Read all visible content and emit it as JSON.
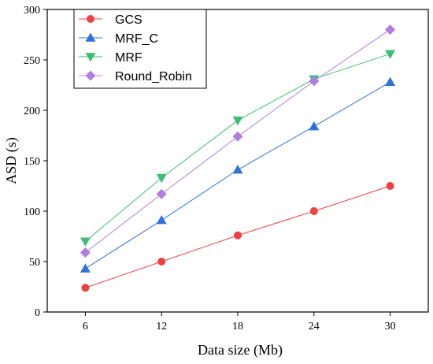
{
  "chart_data": {
    "type": "line",
    "title": "",
    "xlabel": "Data size (Mb)",
    "ylabel": "ASD (s)",
    "x": [
      6,
      12,
      18,
      24,
      30
    ],
    "xticks": [
      "6",
      "12",
      "18",
      "24",
      "30"
    ],
    "ylim": [
      0,
      300
    ],
    "yticks": [
      "0",
      "50",
      "100",
      "150",
      "200",
      "250",
      "300"
    ],
    "grid": false,
    "legend_position": "top-left",
    "series": [
      {
        "name": "GCS",
        "values": [
          24,
          50,
          76,
          100,
          125
        ],
        "color": "#f04040",
        "marker": "circle"
      },
      {
        "name": "MRF_C",
        "values": [
          43,
          91,
          141,
          184,
          228
        ],
        "color": "#2e74d6",
        "marker": "triangle-up"
      },
      {
        "name": "MRF",
        "values": [
          70,
          133,
          190,
          231,
          256
        ],
        "color": "#3cbf74",
        "marker": "triangle-down"
      },
      {
        "name": "Round_Robin",
        "values": [
          59,
          117,
          174,
          229,
          280
        ],
        "color": "#b07ee0",
        "marker": "diamond"
      }
    ]
  }
}
